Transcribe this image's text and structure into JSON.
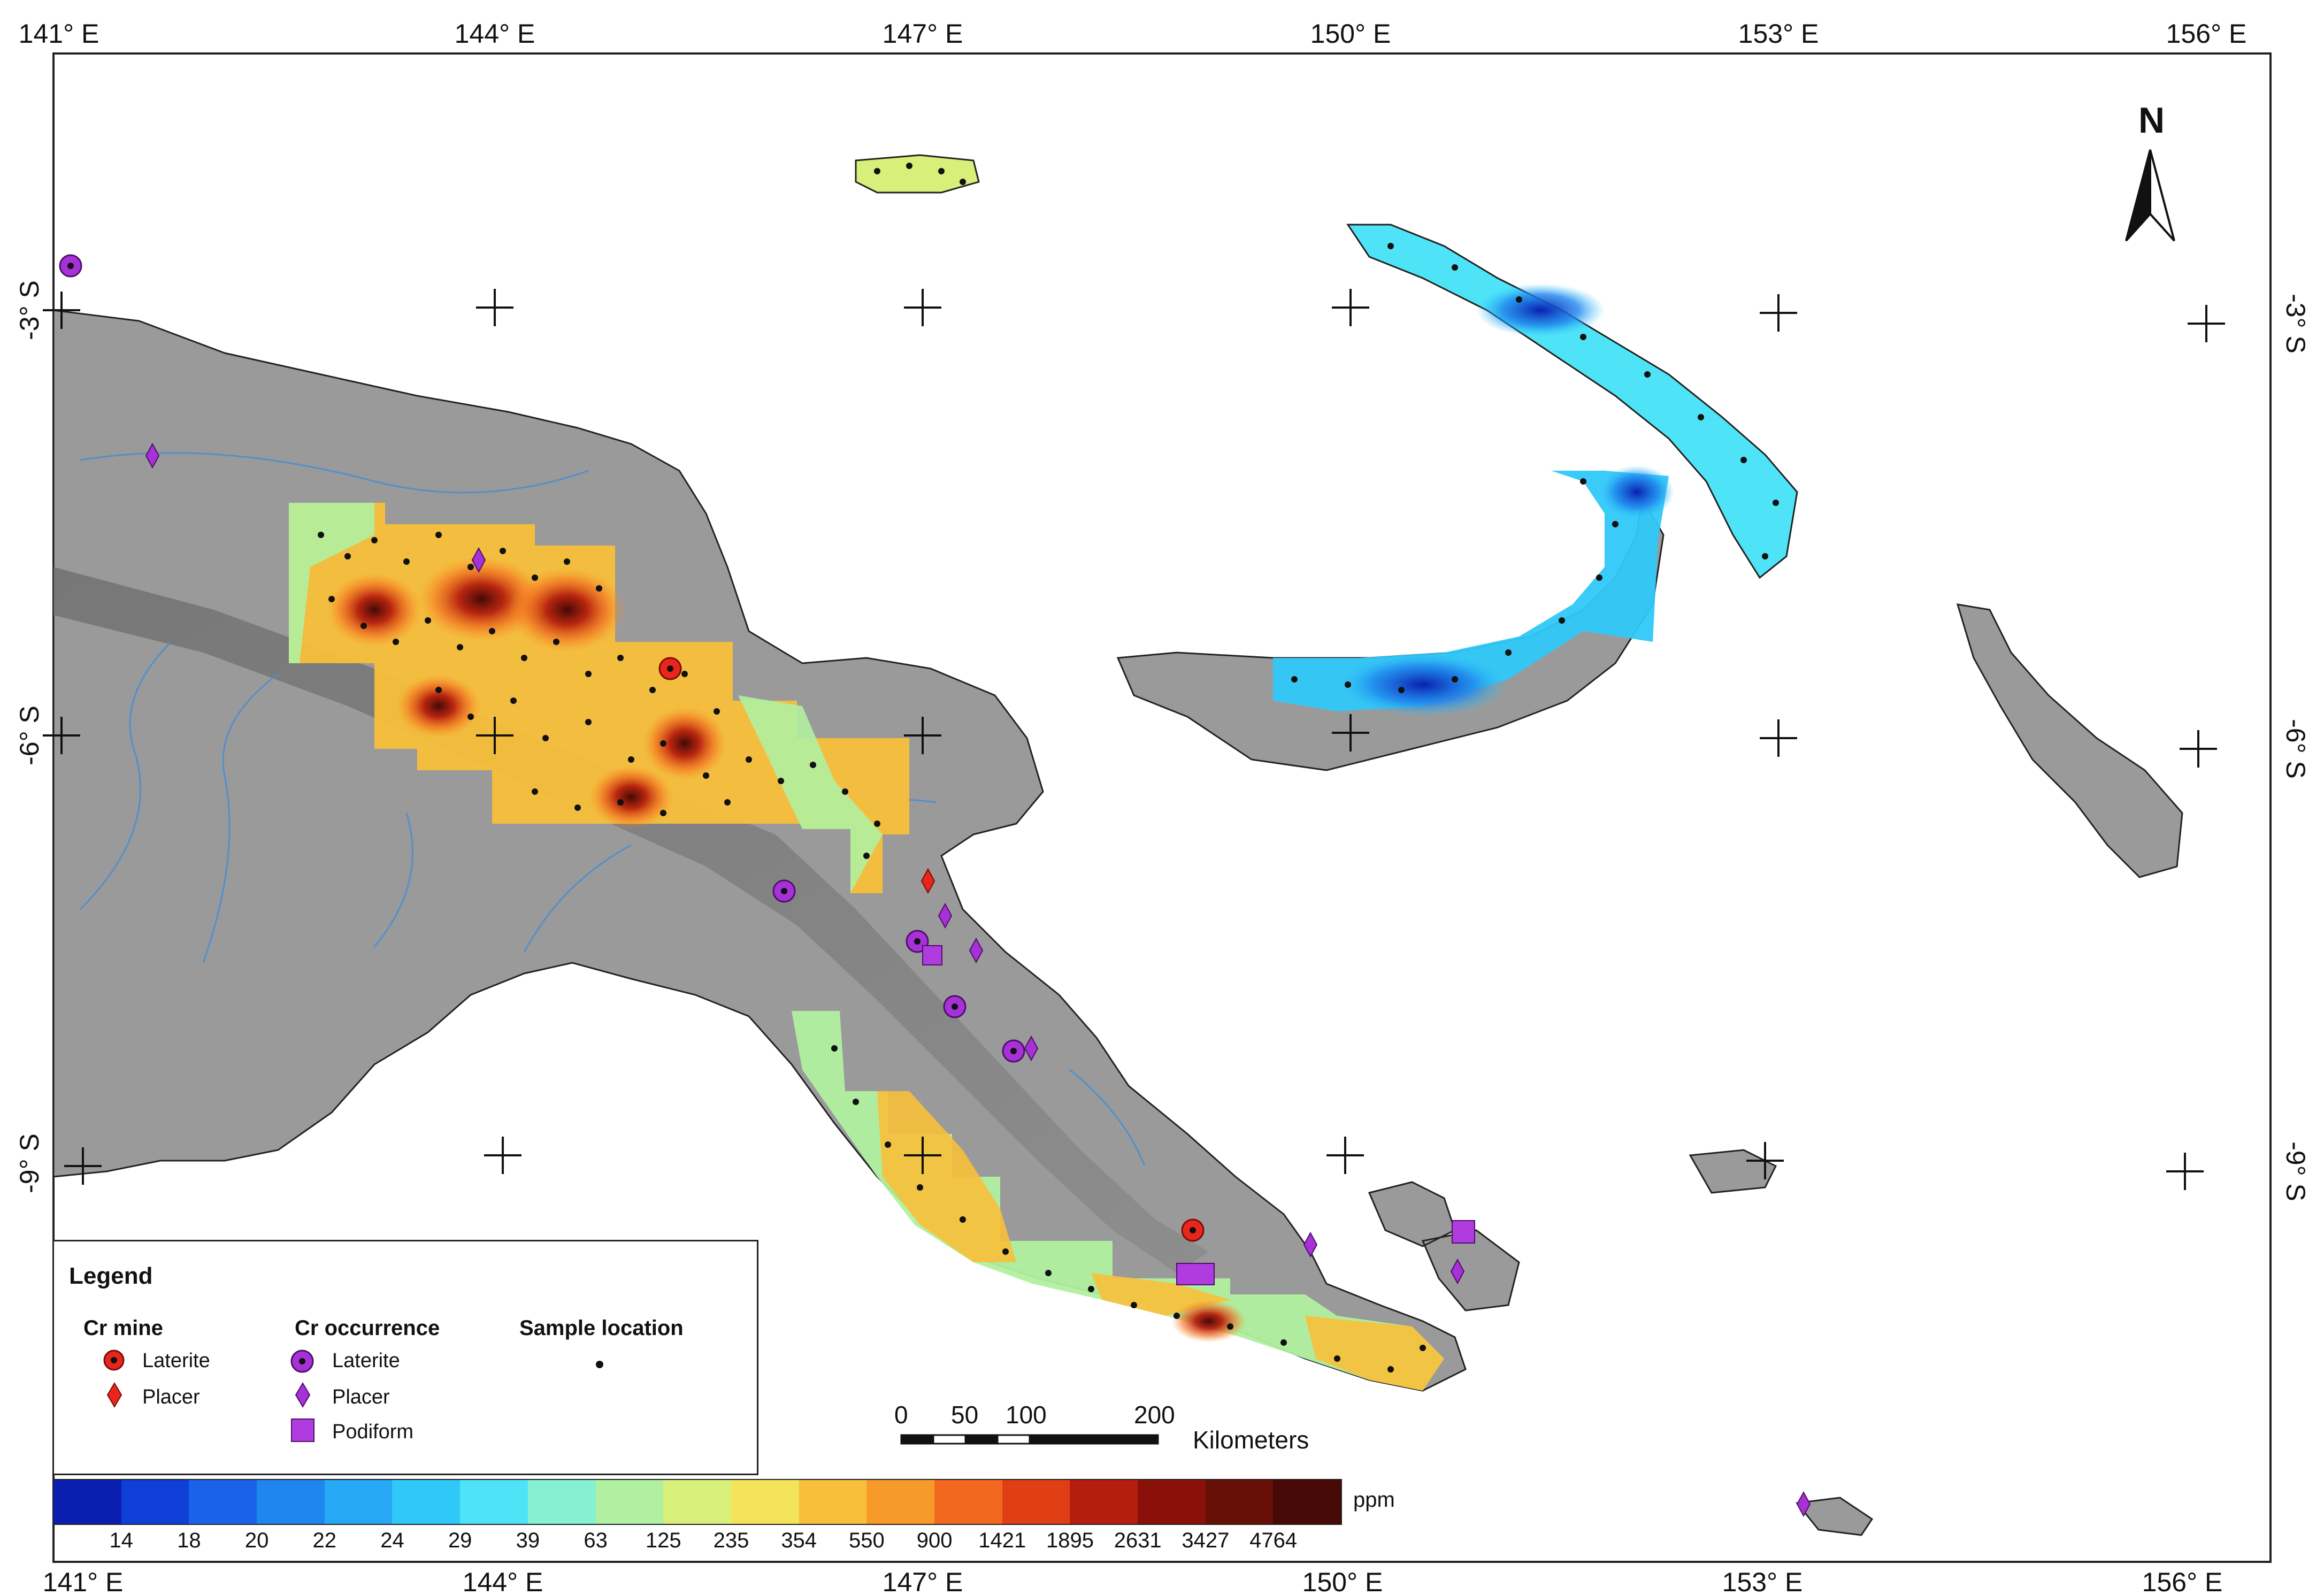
{
  "map": {
    "lon_ticks_top": [
      "141° E",
      "144° E",
      "147° E",
      "150° E",
      "153° E",
      "156° E"
    ],
    "lon_ticks_bottom": [
      "141° E",
      "144° E",
      "147° E",
      "150° E",
      "153° E",
      "156° E"
    ],
    "lat_ticks_left": [
      "-3° S",
      "-6° S",
      "-9° S"
    ],
    "lat_ticks_right": [
      "-3° S",
      "-6° S",
      "-9° S"
    ],
    "north_label": "N",
    "land_color": "#9a9a9a",
    "river_color": "#4a8fd0"
  },
  "legend": {
    "title": "Legend",
    "cr_mine": {
      "heading": "Cr mine",
      "items": [
        {
          "label": "Laterite",
          "symbol": "red-circle-dot",
          "color": "#e8261c"
        },
        {
          "label": "Placer",
          "symbol": "red-diamond",
          "color": "#e8261c"
        }
      ]
    },
    "cr_occurrence": {
      "heading": "Cr occurrence",
      "items": [
        {
          "label": "Laterite",
          "symbol": "purple-circle-dot",
          "color": "#a631d6"
        },
        {
          "label": "Placer",
          "symbol": "purple-diamond",
          "color": "#a631d6"
        },
        {
          "label": "Podiform",
          "symbol": "purple-square",
          "color": "#b03ce0"
        }
      ]
    },
    "sample": {
      "heading": "Sample location",
      "symbol": "black-dot"
    }
  },
  "colorbar": {
    "unit": "ppm",
    "labels": [
      "14",
      "18",
      "20",
      "22",
      "24",
      "29",
      "39",
      "63",
      "125",
      "235",
      "354",
      "550",
      "900",
      "1421",
      "1895",
      "2631",
      "3427",
      "4764"
    ],
    "colors": [
      "#0a1fb0",
      "#0f3fd6",
      "#1a63e8",
      "#1f86ef",
      "#27a8f4",
      "#2fc8f8",
      "#4fe3f8",
      "#86f0d2",
      "#b0f0a0",
      "#d8f07a",
      "#f2e35a",
      "#f8c03a",
      "#f79a2a",
      "#f2681e",
      "#e03e15",
      "#b51e0d",
      "#8a110a",
      "#661008",
      "#470906"
    ]
  },
  "scale_bar": {
    "labels": [
      "0",
      "50",
      "100",
      "200"
    ],
    "unit": "Kilometers"
  }
}
